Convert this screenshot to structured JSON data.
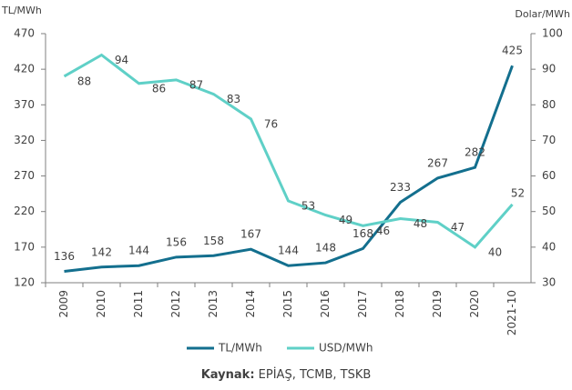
{
  "chart_data": {
    "type": "line",
    "y_label": "TL/MWh",
    "y2_label": "Dolar/MWh",
    "categories": [
      "2009",
      "2010",
      "2011",
      "2012",
      "2013",
      "2014",
      "2015",
      "2016",
      "2017",
      "2018",
      "2019",
      "2020",
      "2021-10"
    ],
    "series": [
      {
        "name": "TL/MWh",
        "color": "#136f8e",
        "values": [
          136,
          142,
          144,
          156,
          158,
          167,
          144,
          148,
          168,
          233,
          267,
          282,
          425
        ]
      },
      {
        "name": "USD/MWh",
        "color": "#5fd0c7",
        "axis": "y2",
        "values": [
          88,
          94,
          86,
          87,
          83,
          76,
          53,
          49,
          46,
          48,
          47,
          40,
          52
        ]
      }
    ],
    "ylim": [
      120,
      470
    ],
    "yticks": [
      120,
      170,
      220,
      270,
      320,
      370,
      420,
      470
    ],
    "y2lim": [
      30,
      100
    ],
    "y2ticks": [
      30,
      40,
      50,
      60,
      70,
      80,
      90,
      100
    ],
    "grid": false,
    "legend": "bottom",
    "source_label": "Kaynak:",
    "source": "EPİAŞ, TCMB, TSKB"
  }
}
